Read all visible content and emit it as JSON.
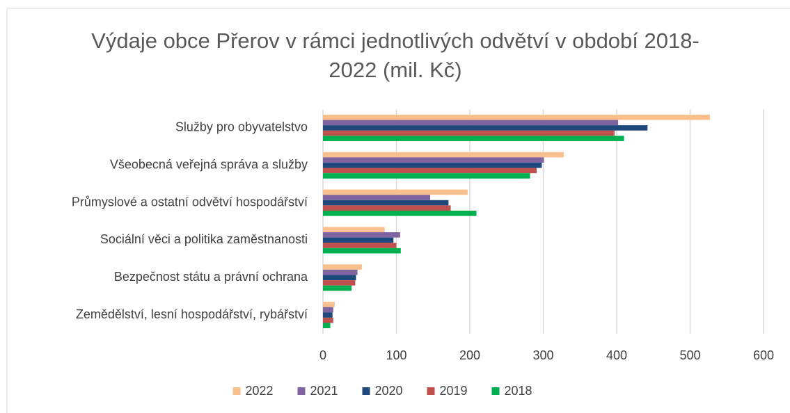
{
  "chart_data": {
    "type": "barh",
    "title": "Výdaje obce Přerov v rámci jednotlivých odvětví v období 2018-2022 (mil. Kč)",
    "categories": [
      "Služby pro obyvatelstvo",
      "Všeobecná veřejná správa a služby",
      "Průmyslové a ostatní odvětví hospodářství",
      "Sociální věci a politika zaměstnanosti",
      "Bezpečnost státu a právní ochrana",
      "Zemědělství, lesní hospodářství, rybářství"
    ],
    "series": [
      {
        "name": "2022",
        "color": "#f8bf8f",
        "values": [
          527,
          328,
          197,
          84,
          53,
          16
        ]
      },
      {
        "name": "2021",
        "color": "#8064a2",
        "values": [
          402,
          301,
          146,
          105,
          47,
          14
        ]
      },
      {
        "name": "2020",
        "color": "#1f497d",
        "values": [
          442,
          298,
          171,
          96,
          45,
          13
        ]
      },
      {
        "name": "2019",
        "color": "#c0504d",
        "values": [
          397,
          291,
          174,
          100,
          44,
          14
        ]
      },
      {
        "name": "2018",
        "color": "#00b050",
        "values": [
          410,
          282,
          209,
          106,
          39,
          10
        ]
      }
    ],
    "xlim": [
      0,
      600
    ],
    "xticks": [
      0,
      100,
      200,
      300,
      400,
      500,
      600
    ],
    "grid": true,
    "legend": "bottom"
  }
}
